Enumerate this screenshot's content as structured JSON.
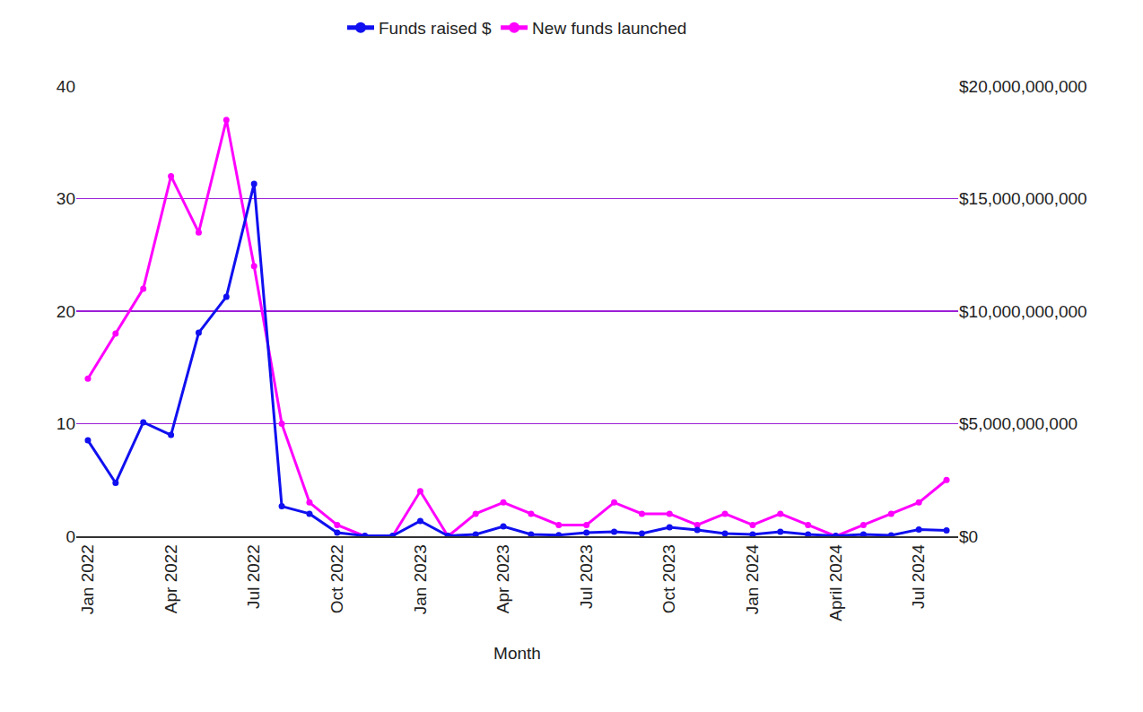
{
  "chart_data": {
    "type": "line",
    "x_label": "Month",
    "categories": [
      "Jan 2022",
      null,
      null,
      "Apr 2022",
      null,
      null,
      "Jul 2022",
      null,
      null,
      "Oct 2022",
      null,
      null,
      "Jan 2023",
      null,
      null,
      "Apr 2023",
      null,
      null,
      "Jul 2023",
      null,
      null,
      "Oct 2023",
      null,
      null,
      "Jan 2024",
      null,
      null,
      "April 2024",
      null,
      null,
      "Jul 2024",
      null
    ],
    "series": [
      {
        "name": "Funds raised $",
        "color": "#1010f0",
        "axis": "y2",
        "marker": "circle",
        "values": [
          4260000000,
          2370000000,
          5060000000,
          4500000000,
          9040000000,
          10640000000,
          15660000000,
          1330000000,
          1000000000,
          160000000,
          20000000,
          20000000,
          680000000,
          20000000,
          80000000,
          440000000,
          80000000,
          50000000,
          160000000,
          200000000,
          120000000,
          400000000,
          280000000,
          120000000,
          80000000,
          200000000,
          80000000,
          20000000,
          80000000,
          40000000,
          300000000,
          260000000
        ]
      },
      {
        "name": "New funds launched",
        "color": "#ff00ff",
        "axis": "y",
        "marker": "circle",
        "values": [
          14,
          18,
          22,
          32,
          27,
          37,
          24,
          10,
          3,
          1,
          0,
          0,
          4,
          0,
          2,
          3,
          2,
          1,
          1,
          3,
          2,
          2,
          1,
          2,
          1,
          2,
          1,
          0,
          1,
          2,
          3,
          5
        ]
      }
    ],
    "ylim": [
      0,
      40
    ],
    "yticks": [
      0,
      10,
      20,
      30,
      40
    ],
    "y2lim": [
      0,
      20000000000
    ],
    "y2ticks": [
      {
        "value": 0,
        "label": "$0"
      },
      {
        "value": 5000000000,
        "label": "$5,000,000,000"
      },
      {
        "value": 10000000000,
        "label": "$10,000,000,000"
      },
      {
        "value": 15000000000,
        "label": "$15,000,000,000"
      },
      {
        "value": 20000000000,
        "label": "$20,000,000,000"
      }
    ],
    "grid": true,
    "legend": "top"
  }
}
